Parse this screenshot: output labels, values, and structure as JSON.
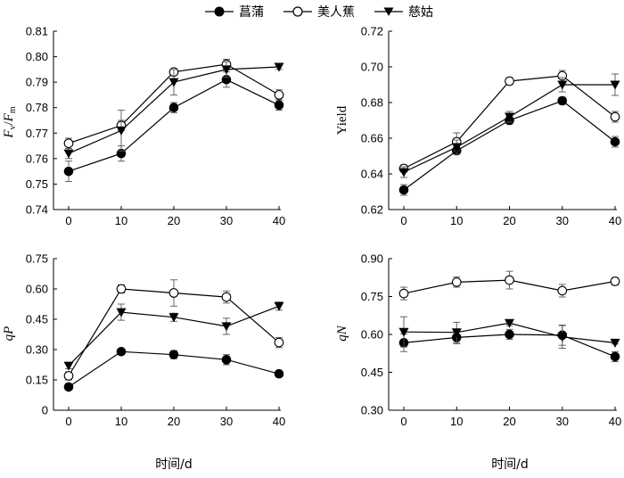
{
  "legend": {
    "s1": "菖蒲",
    "s2": "美人蕉",
    "s3": "慈姑"
  },
  "chart_data": [
    {
      "type": "line",
      "panel": "top-left",
      "ylabel_prefix_1": "F",
      "ylabel_sub_1": "v",
      "ylabel_sep": "/",
      "ylabel_prefix_2": "F",
      "ylabel_sub_2": "m",
      "xlabel": "",
      "x": [
        0,
        10,
        20,
        30,
        40
      ],
      "xticks": [
        "0",
        "10",
        "20",
        "30",
        "40"
      ],
      "ylim": [
        0.74,
        0.81
      ],
      "yticks": [
        "0.74",
        "0.75",
        "0.76",
        "0.77",
        "0.78",
        "0.79",
        "0.80",
        "0.81"
      ],
      "series": [
        {
          "name": "菖蒲",
          "marker": "filled-circle",
          "values": [
            0.755,
            0.762,
            0.78,
            0.791,
            0.781
          ],
          "err": [
            0.004,
            0.003,
            0.002,
            0.003,
            0.002
          ]
        },
        {
          "name": "美人蕉",
          "marker": "open-circle",
          "values": [
            0.766,
            0.773,
            0.794,
            0.797,
            0.785
          ],
          "err": [
            0.002,
            0.002,
            0.001,
            0.002,
            0.002
          ]
        },
        {
          "name": "慈姑",
          "marker": "filled-triangle",
          "values": [
            0.762,
            0.771,
            0.79,
            0.795,
            0.796
          ],
          "err": [
            0.002,
            0.008,
            0.005,
            0.003,
            0.001
          ]
        }
      ]
    },
    {
      "type": "line",
      "panel": "top-right",
      "ylabel": "Yield",
      "xlabel": "",
      "x": [
        0,
        10,
        20,
        30,
        40
      ],
      "xticks": [
        "0",
        "10",
        "20",
        "30",
        "40"
      ],
      "ylim": [
        0.62,
        0.72
      ],
      "yticks": [
        "0.62",
        "0.64",
        "0.66",
        "0.68",
        "0.70",
        "0.72"
      ],
      "series": [
        {
          "name": "菖蒲",
          "marker": "filled-circle",
          "values": [
            0.631,
            0.653,
            0.67,
            0.681,
            0.658
          ],
          "err": [
            0.003,
            0.002,
            0.002,
            0.002,
            0.003
          ]
        },
        {
          "name": "美人蕉",
          "marker": "open-circle",
          "values": [
            0.643,
            0.658,
            0.692,
            0.695,
            0.672
          ],
          "err": [
            0.002,
            0.005,
            0.002,
            0.003,
            0.003
          ]
        },
        {
          "name": "慈姑",
          "marker": "filled-triangle",
          "values": [
            0.641,
            0.655,
            0.672,
            0.69,
            0.69
          ],
          "err": [
            0.003,
            0.004,
            0.003,
            0.004,
            0.006
          ]
        }
      ]
    },
    {
      "type": "line",
      "panel": "bottom-left",
      "ylabel_italic": "qP",
      "xlabel": "时间/d",
      "x": [
        0,
        10,
        20,
        30,
        40
      ],
      "xticks": [
        "0",
        "10",
        "20",
        "30",
        "40"
      ],
      "ylim": [
        0,
        0.75
      ],
      "yticks": [
        "0",
        "0.15",
        "0.30",
        "0.45",
        "0.60",
        "0.75"
      ],
      "series": [
        {
          "name": "菖蒲",
          "marker": "filled-circle",
          "values": [
            0.115,
            0.29,
            0.275,
            0.25,
            0.18
          ],
          "err": [
            0.01,
            0.01,
            0.02,
            0.025,
            0.015
          ]
        },
        {
          "name": "美人蕉",
          "marker": "open-circle",
          "values": [
            0.17,
            0.6,
            0.58,
            0.56,
            0.335
          ],
          "err": [
            0.02,
            0.02,
            0.065,
            0.03,
            0.025
          ]
        },
        {
          "name": "慈姑",
          "marker": "filled-triangle",
          "values": [
            0.22,
            0.485,
            0.46,
            0.415,
            0.515
          ],
          "err": [
            0.015,
            0.04,
            0.02,
            0.04,
            0.02
          ]
        }
      ]
    },
    {
      "type": "line",
      "panel": "bottom-right",
      "ylabel_italic": "qN",
      "xlabel": "时间/d",
      "x": [
        0,
        10,
        20,
        30,
        40
      ],
      "xticks": [
        "0",
        "10",
        "20",
        "30",
        "40"
      ],
      "ylim": [
        0.3,
        0.9
      ],
      "yticks": [
        "0.30",
        "0.45",
        "0.60",
        "0.75",
        "0.90"
      ],
      "series": [
        {
          "name": "菖蒲",
          "marker": "filled-circle",
          "values": [
            0.567,
            0.588,
            0.6,
            0.597,
            0.512
          ],
          "err": [
            0.035,
            0.025,
            0.02,
            0.04,
            0.02
          ]
        },
        {
          "name": "美人蕉",
          "marker": "open-circle",
          "values": [
            0.762,
            0.807,
            0.815,
            0.773,
            0.81
          ],
          "err": [
            0.025,
            0.02,
            0.035,
            0.025,
            0.015
          ]
        },
        {
          "name": "慈姑",
          "marker": "filled-triangle",
          "values": [
            0.61,
            0.608,
            0.645,
            0.59,
            0.567
          ],
          "err": [
            0.06,
            0.04,
            0.01,
            0.045,
            0.005
          ]
        }
      ]
    }
  ]
}
